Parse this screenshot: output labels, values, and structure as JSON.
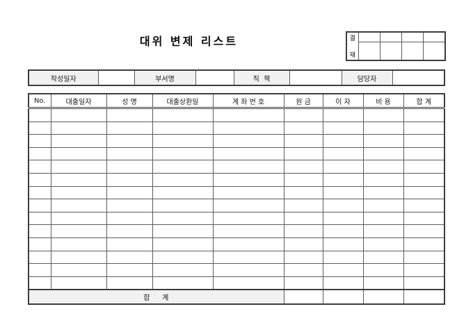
{
  "page": {
    "title": "대위 변제 리스트"
  },
  "approval": {
    "label_top": "결",
    "label_bottom": "재",
    "signature_columns": 4
  },
  "info_fields": [
    {
      "label": "작성일자",
      "value": ""
    },
    {
      "label": "부서명",
      "value": ""
    },
    {
      "label": "직  책",
      "value": ""
    },
    {
      "label": "담당자",
      "value": ""
    }
  ],
  "table": {
    "columns": [
      "No.",
      "대출일자",
      "성 명",
      "대출상환일",
      "계 좌 번 호",
      "원 금",
      "이 자",
      "비 용",
      "합 계"
    ],
    "empty_row_count": 14,
    "footer": {
      "label": "합    계",
      "values": [
        "",
        "",
        "",
        ""
      ]
    }
  },
  "colors": {
    "line_inner": "#5a5a5a",
    "line_outer": "#3c3c3c",
    "label_fill": "#f1f1f1",
    "background": "#ffffff",
    "text": "#111111"
  }
}
